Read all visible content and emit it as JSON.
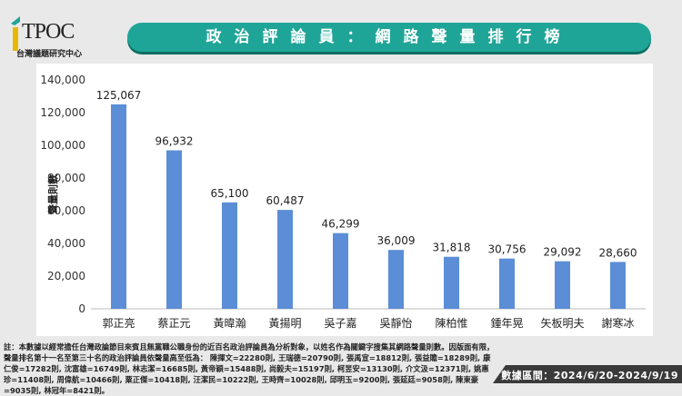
{
  "logo": {
    "text": "TPOC",
    "subtitle": "台灣議題研究中心"
  },
  "banner": {
    "title": "政治評論員：網路聲量排行榜"
  },
  "chart_data": {
    "type": "bar",
    "ylabel": "聲量則數",
    "ylim": [
      0,
      140000
    ],
    "yticks": [
      "0",
      "20,000",
      "40,000",
      "60,000",
      "80,000",
      "100,000",
      "120,000",
      "140,000"
    ],
    "categories": [
      "郭正亮",
      "蔡正元",
      "黃暐瀚",
      "黃揚明",
      "吳子嘉",
      "吳靜怡",
      "陳柏惟",
      "鍾年晃",
      "矢板明夫",
      "謝寒冰"
    ],
    "values": [
      125067,
      96932,
      65100,
      60487,
      46299,
      36009,
      31818,
      30756,
      29092,
      28660
    ],
    "labels": [
      "125,067",
      "96,932",
      "65,100",
      "60,487",
      "46,299",
      "36,009",
      "31,818",
      "30,756",
      "29,092",
      "28,660"
    ],
    "bar_color": "#5b8ed6",
    "grid": false
  },
  "footnote": "註：本數據以經常擔任台灣政論節目來賓且無黨職公職身份的近百名政治評論員為分析對象，以姓名作為關鍵字搜集其網路聲量則數。因版面有限，聲量排名第十一名至第三十名的政治評論員依聲量高至低為： 陳揮文=22280則, 王瑞德=20790則, 張禹宣=18812則, 張益贍=18289則, 康仁俊=17282則, 沈富雄=16749則, 林志潔=16685則, 黃帝穎=15488則, 尚毅夫=15197則, 柯昱安=13130則, 介文汲=12371則, 姚惠珍=11408則, 周偉航=10466則, 粟正傑=10418則, 汪潔民=10222則, 王時齊=10028則, 邱明玉=9200則, 張延廷=9058則, 陳東豪=9035則, 林冠年=8421則。",
  "date_range": "數據區間：2024/6/20-2024/9/19"
}
